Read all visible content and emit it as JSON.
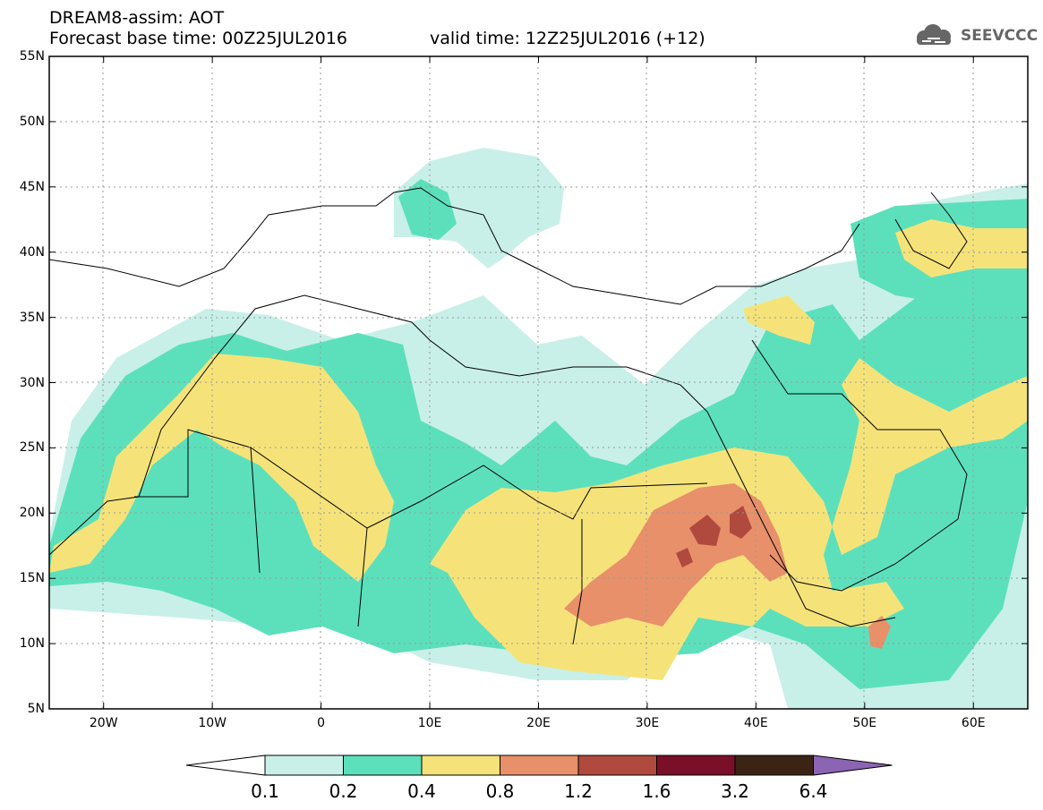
{
  "header": {
    "title": "DREAM8-assim: AOT",
    "base_time": "Forecast base time: 00Z25JUL2016",
    "valid_time": "valid time: 12Z25JUL2016 (+12)"
  },
  "logo": {
    "text": "SEEVCCC",
    "icon": "cloud-icon",
    "color": "#666666"
  },
  "map": {
    "latitude_labels": [
      "55N",
      "50N",
      "45N",
      "40N",
      "35N",
      "30N",
      "25N",
      "20N",
      "15N",
      "10N",
      "5N"
    ],
    "longitude_labels": [
      "20W",
      "10W",
      "0",
      "10E",
      "20E",
      "30E",
      "40E",
      "50E",
      "60E"
    ],
    "lon_range": [
      -25,
      65
    ],
    "lat_range": [
      5,
      55
    ],
    "gridlines": "dotted"
  },
  "colorbar": {
    "levels": [
      "0.1",
      "0.2",
      "0.4",
      "0.8",
      "1.2",
      "1.6",
      "3.2",
      "6.4"
    ],
    "colors": [
      "#c8f0e8",
      "#5ce0bc",
      "#f5e37a",
      "#e8906a",
      "#b04a3e",
      "#7a1028",
      "#3c2414",
      "#8c64b4"
    ],
    "under_color": "#ffffff"
  }
}
